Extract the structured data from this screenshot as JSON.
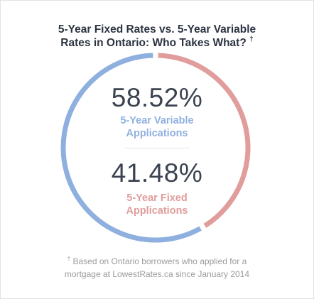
{
  "title": {
    "line1": "5-Year Fixed Rates vs. 5-Year Variable",
    "line2": "Rates in Ontario: Who Takes What?",
    "marker": "†"
  },
  "chart_data": {
    "type": "pie",
    "title": "5-Year Fixed Rates vs. 5-Year Variable Rates in Ontario: Who Takes What?",
    "series": [
      {
        "name": "5-Year Variable Applications",
        "value": 58.52,
        "display": "58.52%",
        "label_line1": "5-Year Variable",
        "label_line2": "Applications",
        "color": "#8fb0df"
      },
      {
        "name": "5-Year Fixed Applications",
        "value": 41.48,
        "display": "41.48%",
        "label_line1": "5-Year Fixed",
        "label_line2": "Applications",
        "color": "#e09d9b"
      }
    ]
  },
  "footnote": {
    "marker": "†",
    "line1": "Based on Ontario borrowers who applied for a",
    "line2": "mortgage at LowestRates.ca since January 2014"
  }
}
